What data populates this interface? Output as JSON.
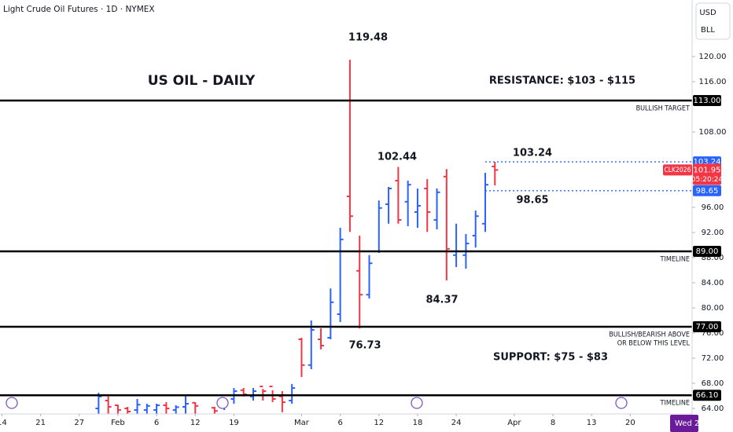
{
  "header": {
    "symbol_title": "Light Crude Oil Futures · 1D · NYMEX",
    "currency": "USD",
    "unit": "BLL"
  },
  "chart_data": {
    "type": "ohlc",
    "title": "US OIL - DAILY",
    "annotations": [
      "RESISTANCE: $103 - $115",
      "SUPPORT: $75 - $83",
      "119.48",
      "102.44",
      "103.24",
      "98.65",
      "84.37",
      "76.73"
    ],
    "xlim": [
      -0.2,
      71.4
    ],
    "xticks": [
      {
        "value": 0,
        "label": "14"
      },
      {
        "value": 4,
        "label": "21"
      },
      {
        "value": 8,
        "label": "27"
      },
      {
        "value": 12,
        "label": "Feb"
      },
      {
        "value": 16,
        "label": "6"
      },
      {
        "value": 20,
        "label": "12"
      },
      {
        "value": 24,
        "label": "19"
      },
      {
        "value": 31,
        "label": "Mar"
      },
      {
        "value": 35,
        "label": "6"
      },
      {
        "value": 39,
        "label": "12"
      },
      {
        "value": 43,
        "label": "18"
      },
      {
        "value": 47,
        "label": "24"
      },
      {
        "value": 53,
        "label": "Apr"
      },
      {
        "value": 57,
        "label": "8"
      },
      {
        "value": 61,
        "label": "13"
      },
      {
        "value": 65,
        "label": "20"
      }
    ],
    "x_badge": "Wed 2",
    "ylim": [
      63.125,
      129
    ],
    "yticks": [
      {
        "value": 64,
        "label": "64.00"
      },
      {
        "value": 68,
        "label": "68.00"
      },
      {
        "value": 72,
        "label": "72.00"
      },
      {
        "value": 76,
        "label": "76.00"
      },
      {
        "value": 80,
        "label": "80.00"
      },
      {
        "value": 84,
        "label": "84.00"
      },
      {
        "value": 88,
        "label": "88.00"
      },
      {
        "value": 92,
        "label": "92.00"
      },
      {
        "value": 96,
        "label": "96.00"
      },
      {
        "value": 108,
        "label": "108.00"
      },
      {
        "value": 116,
        "label": "116.00"
      },
      {
        "value": 120,
        "label": "120.00"
      }
    ],
    "up_color": "#2962ff",
    "down_color": "#f23645",
    "bars": {
      "x": [
        10,
        11,
        12,
        13,
        14,
        15,
        16,
        17,
        18,
        19,
        20,
        22,
        23,
        24,
        25,
        26,
        27,
        28,
        29,
        30,
        31,
        32,
        33,
        34,
        35,
        36,
        37,
        38,
        39,
        40,
        41,
        42,
        43,
        44,
        45,
        46,
        47,
        48,
        49,
        50,
        51
      ],
      "open": [
        64,
        65.25,
        64.5,
        64,
        63.75,
        63.75,
        63.75,
        64.5,
        63.75,
        64.25,
        64.9,
        64.1,
        64.6,
        65.5,
        66.9,
        65.9,
        67.5,
        67.5,
        65.9,
        65.25,
        75,
        70.9,
        75,
        75.25,
        79,
        97.75,
        85.9,
        82.1,
        89,
        96.5,
        100.25,
        96.9,
        95.25,
        99,
        94,
        100.9,
        88.4,
        88.4,
        91.5,
        93.4,
        102.5
      ],
      "high": [
        66.5,
        65.9,
        64.6,
        64.25,
        65.5,
        64.75,
        64.75,
        65,
        64.5,
        66,
        65,
        64.25,
        65.5,
        67.25,
        67.25,
        67.25,
        67.1,
        66.9,
        66.75,
        67.9,
        75.25,
        78,
        76.75,
        83.1,
        92.75,
        119.48,
        91.5,
        88.4,
        97.1,
        99.25,
        102.44,
        100.25,
        99,
        100.5,
        99,
        102.1,
        93.4,
        91.75,
        95.5,
        101.5,
        103.24
      ],
      "low": [
        63.1,
        63.1,
        63.1,
        63.1,
        63.1,
        63.1,
        63.1,
        63.1,
        63.1,
        63.1,
        63.1,
        63.1,
        63.75,
        64.75,
        65.9,
        65.25,
        65.25,
        65,
        63.4,
        64.75,
        69,
        70.25,
        73.4,
        75,
        77.75,
        92.1,
        76.73,
        81.5,
        88.75,
        93.4,
        93.4,
        93,
        92.75,
        92.1,
        92.5,
        84.37,
        86.5,
        86.25,
        89.6,
        92.1,
        99.5
      ],
      "close": [
        65.9,
        64.25,
        63.75,
        63.5,
        64.6,
        64.4,
        64.5,
        64,
        64.2,
        64.75,
        64.4,
        63.6,
        65.25,
        66.75,
        66.25,
        66.75,
        66.75,
        65.5,
        65,
        67.25,
        70.9,
        76.5,
        74,
        80.9,
        90.9,
        94.6,
        82.1,
        87.1,
        95.9,
        99,
        94,
        99.6,
        96.25,
        95.25,
        98.4,
        89.4,
        89,
        90.25,
        94.6,
        99.6,
        101.95
      ]
    },
    "levels": [
      {
        "value": 113,
        "label": "113.00",
        "note": [
          "BULLISH TARGET"
        ]
      },
      {
        "value": 89,
        "label": "89.00",
        "note": [
          "TIMELINE"
        ]
      },
      {
        "value": 77,
        "label": "77.00",
        "note": [
          "BULLISH/BEARISH ABOVE",
          "OR BELOW THIS LEVEL"
        ]
      },
      {
        "value": 66.1,
        "label": "66.10",
        "note": [
          "TIMELINE"
        ]
      }
    ],
    "range_lines": [
      {
        "value": 103.24,
        "label": "103.24",
        "start": 50
      },
      {
        "value": 98.65,
        "label": "98.65",
        "start": 50
      }
    ],
    "range_color": "#2962ff",
    "last_price": {
      "symbol": "CLK2026",
      "value": 101.95,
      "label": "101.95",
      "countdown": "05:20:24"
    }
  }
}
